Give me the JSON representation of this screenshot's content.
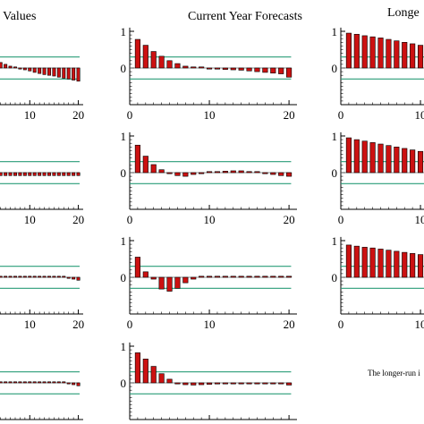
{
  "chart_data": {
    "type": "bar",
    "colors": {
      "bar_fill": "#cc1111",
      "bar_stroke": "#000000",
      "band_line": "#2a9d78",
      "zero_line": "#000000"
    },
    "column_titles": [
      "l Values",
      "Current Year Forecasts",
      "Longe"
    ],
    "note_text": "The longer-run i",
    "x_ticks_labels": [
      "10",
      "20"
    ],
    "y_ticks_labels": [
      "1",
      "0"
    ],
    "ylim": [
      -1.0,
      1.1
    ],
    "xlim": [
      0,
      21
    ],
    "band": 0.3,
    "lags": [
      1,
      2,
      3,
      4,
      5,
      6,
      7,
      8,
      9,
      10,
      11,
      12,
      13,
      14,
      15,
      16,
      17,
      18,
      19,
      20
    ],
    "panels": [
      {
        "row": 0,
        "col": 0,
        "values": [
          0.35,
          0.3,
          0.22,
          0.15,
          0.1,
          0.05,
          0.02,
          -0.02,
          -0.05,
          -0.08,
          -0.12,
          -0.15,
          -0.18,
          -0.2,
          -0.22,
          -0.25,
          -0.28,
          -0.3,
          -0.33,
          -0.36
        ]
      },
      {
        "row": 0,
        "col": 1,
        "values": [
          0.78,
          0.62,
          0.45,
          0.32,
          0.2,
          0.12,
          0.05,
          0.02,
          0.0,
          -0.02,
          -0.03,
          -0.04,
          -0.05,
          -0.06,
          -0.08,
          -0.1,
          -0.12,
          -0.14,
          -0.16,
          -0.25
        ]
      },
      {
        "row": 0,
        "col": 2,
        "values": [
          0.95,
          0.92,
          0.88,
          0.85,
          0.82,
          0.78,
          0.74,
          0.7,
          0.66,
          0.62,
          0.58,
          0.54,
          0.5,
          0.46,
          0.42,
          0.38,
          0.34,
          0.3,
          0.26,
          0.22
        ]
      },
      {
        "row": 1,
        "col": 0,
        "values": [
          -0.08,
          -0.08,
          -0.08,
          -0.08,
          -0.08,
          -0.08,
          -0.08,
          -0.08,
          -0.08,
          -0.08,
          -0.08,
          -0.08,
          -0.08,
          -0.08,
          -0.08,
          -0.08,
          -0.08,
          -0.08,
          -0.08,
          -0.08
        ]
      },
      {
        "row": 1,
        "col": 1,
        "values": [
          0.75,
          0.45,
          0.22,
          0.08,
          -0.02,
          -0.08,
          -0.1,
          -0.05,
          -0.02,
          0.0,
          0.02,
          0.04,
          0.05,
          0.05,
          0.03,
          0.02,
          -0.02,
          -0.05,
          -0.08,
          -0.1
        ]
      },
      {
        "row": 1,
        "col": 2,
        "values": [
          0.95,
          0.9,
          0.86,
          0.82,
          0.78,
          0.74,
          0.7,
          0.66,
          0.62,
          0.58,
          0.54,
          0.5,
          0.46,
          0.42,
          0.38,
          0.34,
          0.3,
          0.26,
          0.22,
          0.18
        ]
      },
      {
        "row": 2,
        "col": 0,
        "values": [
          0.0,
          0.0,
          0.0,
          0.0,
          0.0,
          0.0,
          0.0,
          0.0,
          0.02,
          0.03,
          0.03,
          0.02,
          0.02,
          0.01,
          0.0,
          0.0,
          0.0,
          -0.02,
          -0.05,
          -0.08
        ]
      },
      {
        "row": 2,
        "col": 1,
        "values": [
          0.55,
          0.15,
          -0.05,
          -0.32,
          -0.38,
          -0.3,
          -0.15,
          -0.05,
          0.0,
          0.0,
          0.0,
          0.0,
          0.0,
          0.0,
          0.0,
          0.0,
          0.0,
          0.0,
          0.0,
          0.0
        ]
      },
      {
        "row": 2,
        "col": 2,
        "values": [
          0.88,
          0.85,
          0.82,
          0.8,
          0.77,
          0.74,
          0.71,
          0.68,
          0.65,
          0.62,
          0.59,
          0.56,
          0.53,
          0.5,
          0.47,
          0.44,
          0.41,
          0.38,
          0.35,
          0.32
        ]
      },
      {
        "row": 3,
        "col": 0,
        "values": [
          0.0,
          0.0,
          0.0,
          0.0,
          0.0,
          0.0,
          0.0,
          0.0,
          0.02,
          0.03,
          0.03,
          0.02,
          0.02,
          0.01,
          0.0,
          0.0,
          0.0,
          -0.02,
          -0.05,
          -0.08
        ]
      },
      {
        "row": 3,
        "col": 1,
        "values": [
          0.82,
          0.65,
          0.45,
          0.25,
          0.1,
          -0.02,
          -0.05,
          -0.06,
          -0.05,
          -0.04,
          -0.03,
          -0.02,
          -0.02,
          -0.02,
          -0.02,
          -0.02,
          -0.02,
          -0.02,
          -0.02,
          -0.06
        ]
      }
    ]
  }
}
